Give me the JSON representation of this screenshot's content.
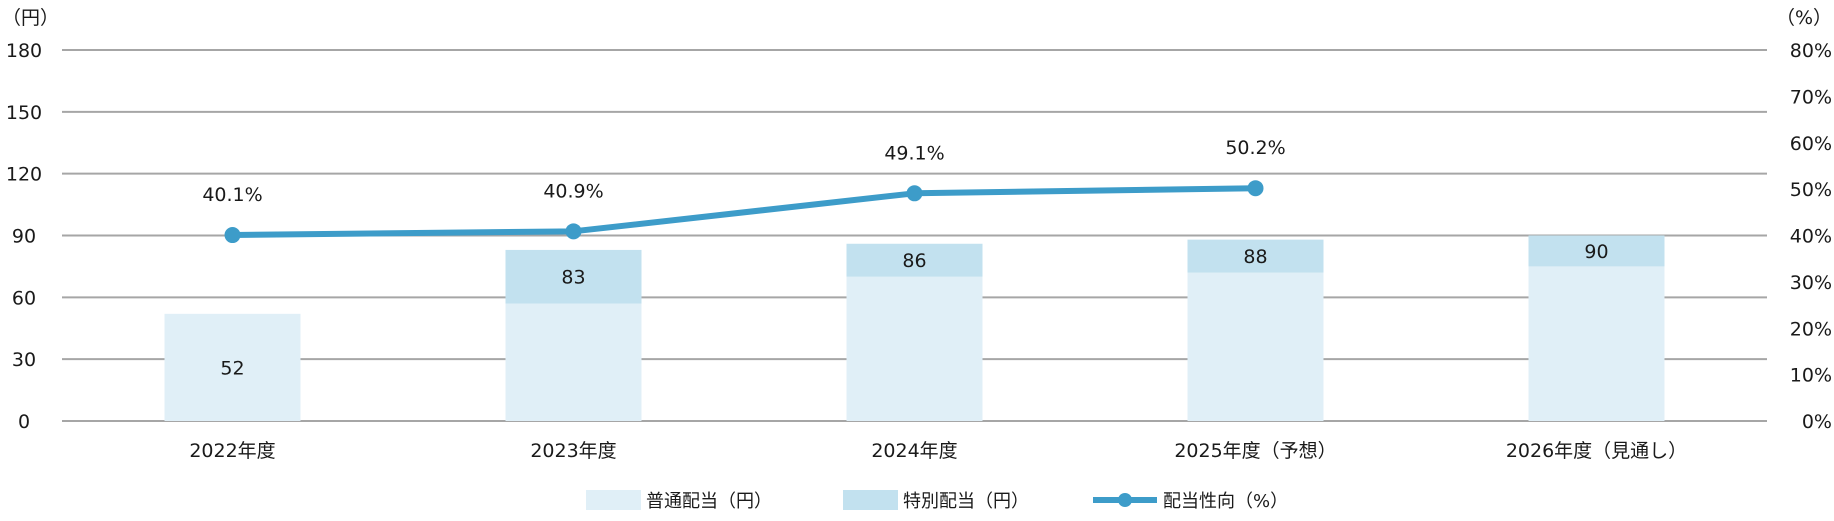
{
  "chart_data": {
    "type": "bar",
    "stacked": true,
    "categories": [
      "2022年度",
      "2023年度",
      "2024年度",
      "2025年度（予想）",
      "2026年度（見通し）"
    ],
    "series": [
      {
        "name": "普通配当（円）",
        "values": [
          52,
          57,
          70,
          72,
          75
        ],
        "color": "#e0eff7",
        "axis": "left"
      },
      {
        "name": "特別配当（円）",
        "values": [
          0,
          26,
          16,
          16,
          15
        ],
        "color": "#c2e1ef",
        "axis": "left"
      },
      {
        "name": "配当性向（%）",
        "type": "line",
        "values": [
          40.1,
          40.9,
          49.1,
          50.2,
          null
        ],
        "color": "#3d9cc9",
        "axis": "right"
      }
    ],
    "total_labels": [
      "52",
      "83",
      "86",
      "88",
      "90"
    ],
    "line_labels": [
      "40.1%",
      "40.9%",
      "49.1%",
      "50.2%"
    ],
    "y_left": {
      "unit": "（円）",
      "ticks": [
        "0",
        "30",
        "60",
        "90",
        "120",
        "150",
        "180"
      ],
      "range": [
        0,
        180
      ]
    },
    "y_right": {
      "unit": "（%）",
      "ticks": [
        "0%",
        "10%",
        "20%",
        "30%",
        "40%",
        "50%",
        "60%",
        "70%",
        "80%"
      ],
      "range": [
        0,
        80
      ]
    },
    "grid": true,
    "legend_position": "bottom"
  }
}
